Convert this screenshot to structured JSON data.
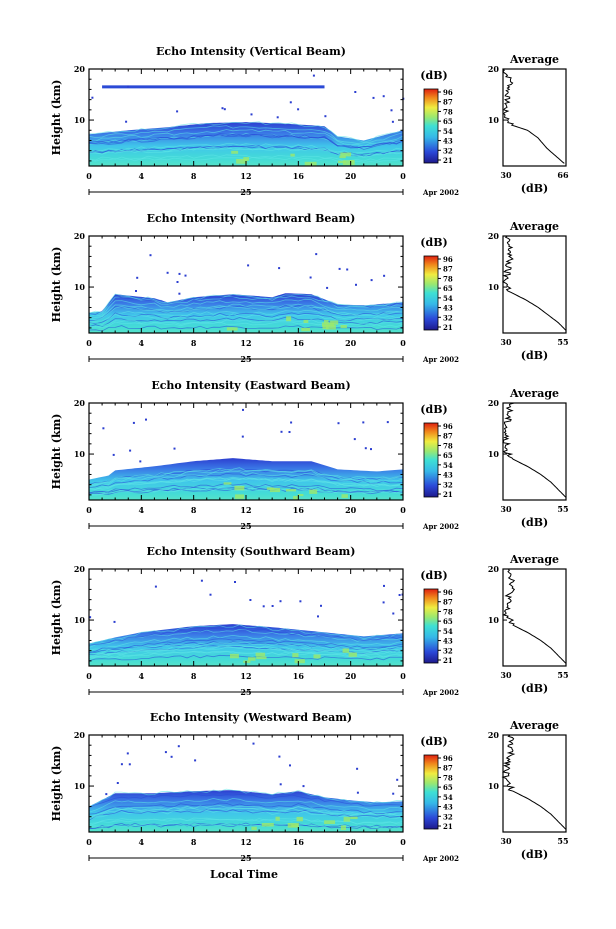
{
  "figure": {
    "x_axis_label": "Local Time",
    "date_label": "Apr 2002",
    "day_label": "25",
    "colorbar_unit": "(dB)",
    "colorbar_ticks": [
      "96",
      "87",
      "78",
      "65",
      "54",
      "43",
      "32",
      "21"
    ],
    "colors": {
      "low": "#1e1a8c",
      "mid": "#3ad8e4",
      "high": "#e02010"
    }
  },
  "chart_data": [
    {
      "type": "heatmap",
      "title": "Echo Intensity (Vertical Beam)",
      "ylabel": "Height (km)",
      "xlabel": "",
      "x_ticks": [
        "0",
        "4",
        "8",
        "12",
        "16",
        "20",
        "0"
      ],
      "y_ticks": [
        "20",
        "10"
      ],
      "xlim": [
        0,
        24
      ],
      "ylim": [
        1,
        20
      ],
      "echo_top_km": [
        [
          0,
          7.2
        ],
        [
          3,
          8.0
        ],
        [
          6,
          8.6
        ],
        [
          9,
          9.4
        ],
        [
          12,
          9.6
        ],
        [
          15,
          9.3
        ],
        [
          18,
          8.8
        ],
        [
          19,
          6.8
        ],
        [
          21,
          6.0
        ],
        [
          24,
          8.0
        ]
      ],
      "upper_layer_km": 16.5,
      "colorbar_ticks": [
        "96",
        "87",
        "78",
        "65",
        "54",
        "43",
        "32",
        "21"
      ],
      "profile": {
        "title": "Average",
        "xlabel": "(dB)",
        "x_ticks": [
          "30",
          "66"
        ],
        "y_ticks": [
          "20",
          "10"
        ],
        "xlim": [
          30,
          66
        ],
        "points": [
          [
            30,
            20
          ],
          [
            35,
            17.5
          ],
          [
            33,
            16
          ],
          [
            32,
            13
          ],
          [
            31,
            11
          ],
          [
            35,
            9
          ],
          [
            44,
            8
          ],
          [
            50,
            6.5
          ],
          [
            55,
            4.5
          ],
          [
            60,
            3
          ],
          [
            65,
            1.5
          ]
        ]
      }
    },
    {
      "type": "heatmap",
      "title": "Echo Intensity (Northward Beam)",
      "ylabel": "Height (km)",
      "xlabel": "",
      "x_ticks": [
        "0",
        "4",
        "8",
        "12",
        "16",
        "20",
        "0"
      ],
      "y_ticks": [
        "20",
        "10"
      ],
      "xlim": [
        0,
        24
      ],
      "ylim": [
        1,
        20
      ],
      "echo_top_km": [
        [
          0,
          5.0
        ],
        [
          1,
          5.2
        ],
        [
          2,
          8.6
        ],
        [
          5,
          7.8
        ],
        [
          6,
          7.0
        ],
        [
          8,
          8.0
        ],
        [
          11,
          8.6
        ],
        [
          14,
          8.0
        ],
        [
          15,
          8.8
        ],
        [
          17,
          8.6
        ],
        [
          19,
          6.6
        ],
        [
          21,
          6.4
        ],
        [
          24,
          7.0
        ]
      ],
      "colorbar_ticks": [
        "96",
        "87",
        "78",
        "65",
        "54",
        "43",
        "32",
        "21"
      ],
      "profile": {
        "title": "Average",
        "xlabel": "(dB)",
        "x_ticks": [
          "30",
          "55"
        ],
        "y_ticks": [
          "20",
          "10"
        ],
        "xlim": [
          30,
          55
        ],
        "points": [
          [
            31,
            20
          ],
          [
            33,
            17
          ],
          [
            32,
            14
          ],
          [
            31,
            11
          ],
          [
            33,
            9
          ],
          [
            39,
            7.5
          ],
          [
            44,
            6
          ],
          [
            48,
            4.5
          ],
          [
            52,
            3
          ],
          [
            55,
            1.5
          ]
        ]
      }
    },
    {
      "type": "heatmap",
      "title": "Echo Intensity (Eastward Beam)",
      "ylabel": "Height (km)",
      "xlabel": "",
      "x_ticks": [
        "0",
        "4",
        "8",
        "12",
        "16",
        "20",
        "0"
      ],
      "y_ticks": [
        "20",
        "10"
      ],
      "xlim": [
        0,
        24
      ],
      "ylim": [
        1,
        20
      ],
      "echo_top_km": [
        [
          0,
          5.0
        ],
        [
          1.5,
          5.8
        ],
        [
          2,
          6.8
        ],
        [
          5,
          7.6
        ],
        [
          8,
          8.6
        ],
        [
          11,
          9.2
        ],
        [
          14,
          8.6
        ],
        [
          17,
          8.6
        ],
        [
          19,
          7.0
        ],
        [
          22,
          6.6
        ],
        [
          24,
          7.0
        ]
      ],
      "colorbar_ticks": [
        "96",
        "87",
        "78",
        "65",
        "54",
        "43",
        "32",
        "21"
      ],
      "profile": {
        "title": "Average",
        "xlabel": "(dB)",
        "x_ticks": [
          "30",
          "55"
        ],
        "y_ticks": [
          "20",
          "10"
        ],
        "xlim": [
          30,
          55
        ],
        "points": [
          [
            33,
            20
          ],
          [
            32,
            17
          ],
          [
            31,
            14
          ],
          [
            31,
            11
          ],
          [
            34,
            9
          ],
          [
            40,
            7.5
          ],
          [
            45,
            6
          ],
          [
            49,
            4.5
          ],
          [
            52,
            3
          ],
          [
            55,
            1.5
          ]
        ]
      }
    },
    {
      "type": "heatmap",
      "title": "Echo Intensity (Southward Beam)",
      "ylabel": "Height (km)",
      "xlabel": "",
      "x_ticks": [
        "0",
        "4",
        "8",
        "12",
        "16",
        "20",
        "0"
      ],
      "y_ticks": [
        "20",
        "10"
      ],
      "xlim": [
        0,
        24
      ],
      "ylim": [
        1,
        20
      ],
      "echo_top_km": [
        [
          0,
          5.4
        ],
        [
          2,
          6.6
        ],
        [
          4,
          7.6
        ],
        [
          8,
          8.8
        ],
        [
          11,
          9.2
        ],
        [
          14,
          8.6
        ],
        [
          18,
          7.6
        ],
        [
          21,
          6.8
        ],
        [
          24,
          7.4
        ]
      ],
      "colorbar_ticks": [
        "96",
        "87",
        "78",
        "65",
        "54",
        "43",
        "32",
        "21"
      ],
      "profile": {
        "title": "Average",
        "xlabel": "(dB)",
        "x_ticks": [
          "30",
          "55"
        ],
        "y_ticks": [
          "20",
          "10"
        ],
        "xlim": [
          30,
          55
        ],
        "points": [
          [
            33,
            20
          ],
          [
            34,
            17
          ],
          [
            32,
            14
          ],
          [
            31,
            11
          ],
          [
            34,
            9
          ],
          [
            40,
            7.5
          ],
          [
            45,
            6
          ],
          [
            49,
            4.5
          ],
          [
            52,
            3
          ],
          [
            55,
            1.5
          ]
        ]
      }
    },
    {
      "type": "heatmap",
      "title": "Echo Intensity (Westward Beam)",
      "ylabel": "Height (km)",
      "xlabel": "Local Time",
      "x_ticks": [
        "0",
        "4",
        "8",
        "12",
        "16",
        "20",
        "0"
      ],
      "y_ticks": [
        "20",
        "10"
      ],
      "xlim": [
        0,
        24
      ],
      "ylim": [
        1,
        20
      ],
      "echo_top_km": [
        [
          0,
          6.0
        ],
        [
          2,
          8.6
        ],
        [
          5,
          8.6
        ],
        [
          8,
          9.0
        ],
        [
          11,
          9.2
        ],
        [
          14,
          8.4
        ],
        [
          16,
          9.0
        ],
        [
          18,
          7.8
        ],
        [
          20,
          7.2
        ],
        [
          22,
          6.8
        ],
        [
          24,
          7.0
        ]
      ],
      "colorbar_ticks": [
        "96",
        "87",
        "78",
        "65",
        "54",
        "43",
        "32",
        "21"
      ],
      "profile": {
        "title": "Average",
        "xlabel": "(dB)",
        "x_ticks": [
          "30",
          "55"
        ],
        "y_ticks": [
          "20",
          "10"
        ],
        "xlim": [
          30,
          55
        ],
        "points": [
          [
            33,
            20
          ],
          [
            33,
            17
          ],
          [
            32,
            14
          ],
          [
            31,
            11
          ],
          [
            34,
            9
          ],
          [
            40,
            7.5
          ],
          [
            45,
            6
          ],
          [
            49,
            4.5
          ],
          [
            52,
            3
          ],
          [
            55,
            1.5
          ]
        ]
      }
    }
  ]
}
